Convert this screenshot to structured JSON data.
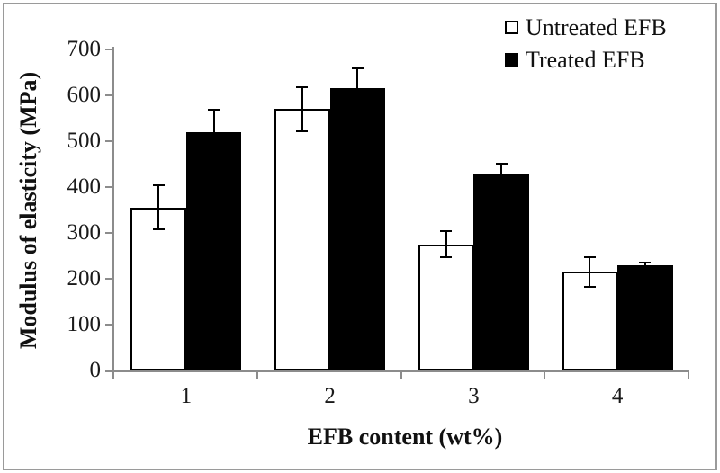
{
  "chart_data": {
    "type": "bar",
    "title": "",
    "xlabel": "EFB content (wt%)",
    "ylabel": "Modulus of elasticity (MPa)",
    "categories": [
      "1",
      "2",
      "3",
      "4"
    ],
    "series": [
      {
        "name": "Untreated EFB",
        "fill": "#ffffff",
        "values": [
          355,
          570,
          275,
          215
        ],
        "errors": [
          50,
          50,
          30,
          35
        ]
      },
      {
        "name": "Treated EFB",
        "fill": "#000000",
        "values": [
          520,
          615,
          428,
          230
        ],
        "errors": [
          50,
          45,
          25,
          8
        ]
      }
    ],
    "ylim": [
      0,
      700
    ],
    "ytick_step": 100,
    "yticks": [
      "0",
      "100",
      "200",
      "300",
      "400",
      "500",
      "600",
      "700"
    ],
    "legend_position": "top-right",
    "grid": false,
    "error_bars": true
  },
  "colors": {
    "axis": "#8c8c8c",
    "bar_border": "#000000",
    "error_bar": "#000000",
    "frame_border": "#9a9a9a",
    "background": "#ffffff",
    "text": "#1a1a1a"
  }
}
